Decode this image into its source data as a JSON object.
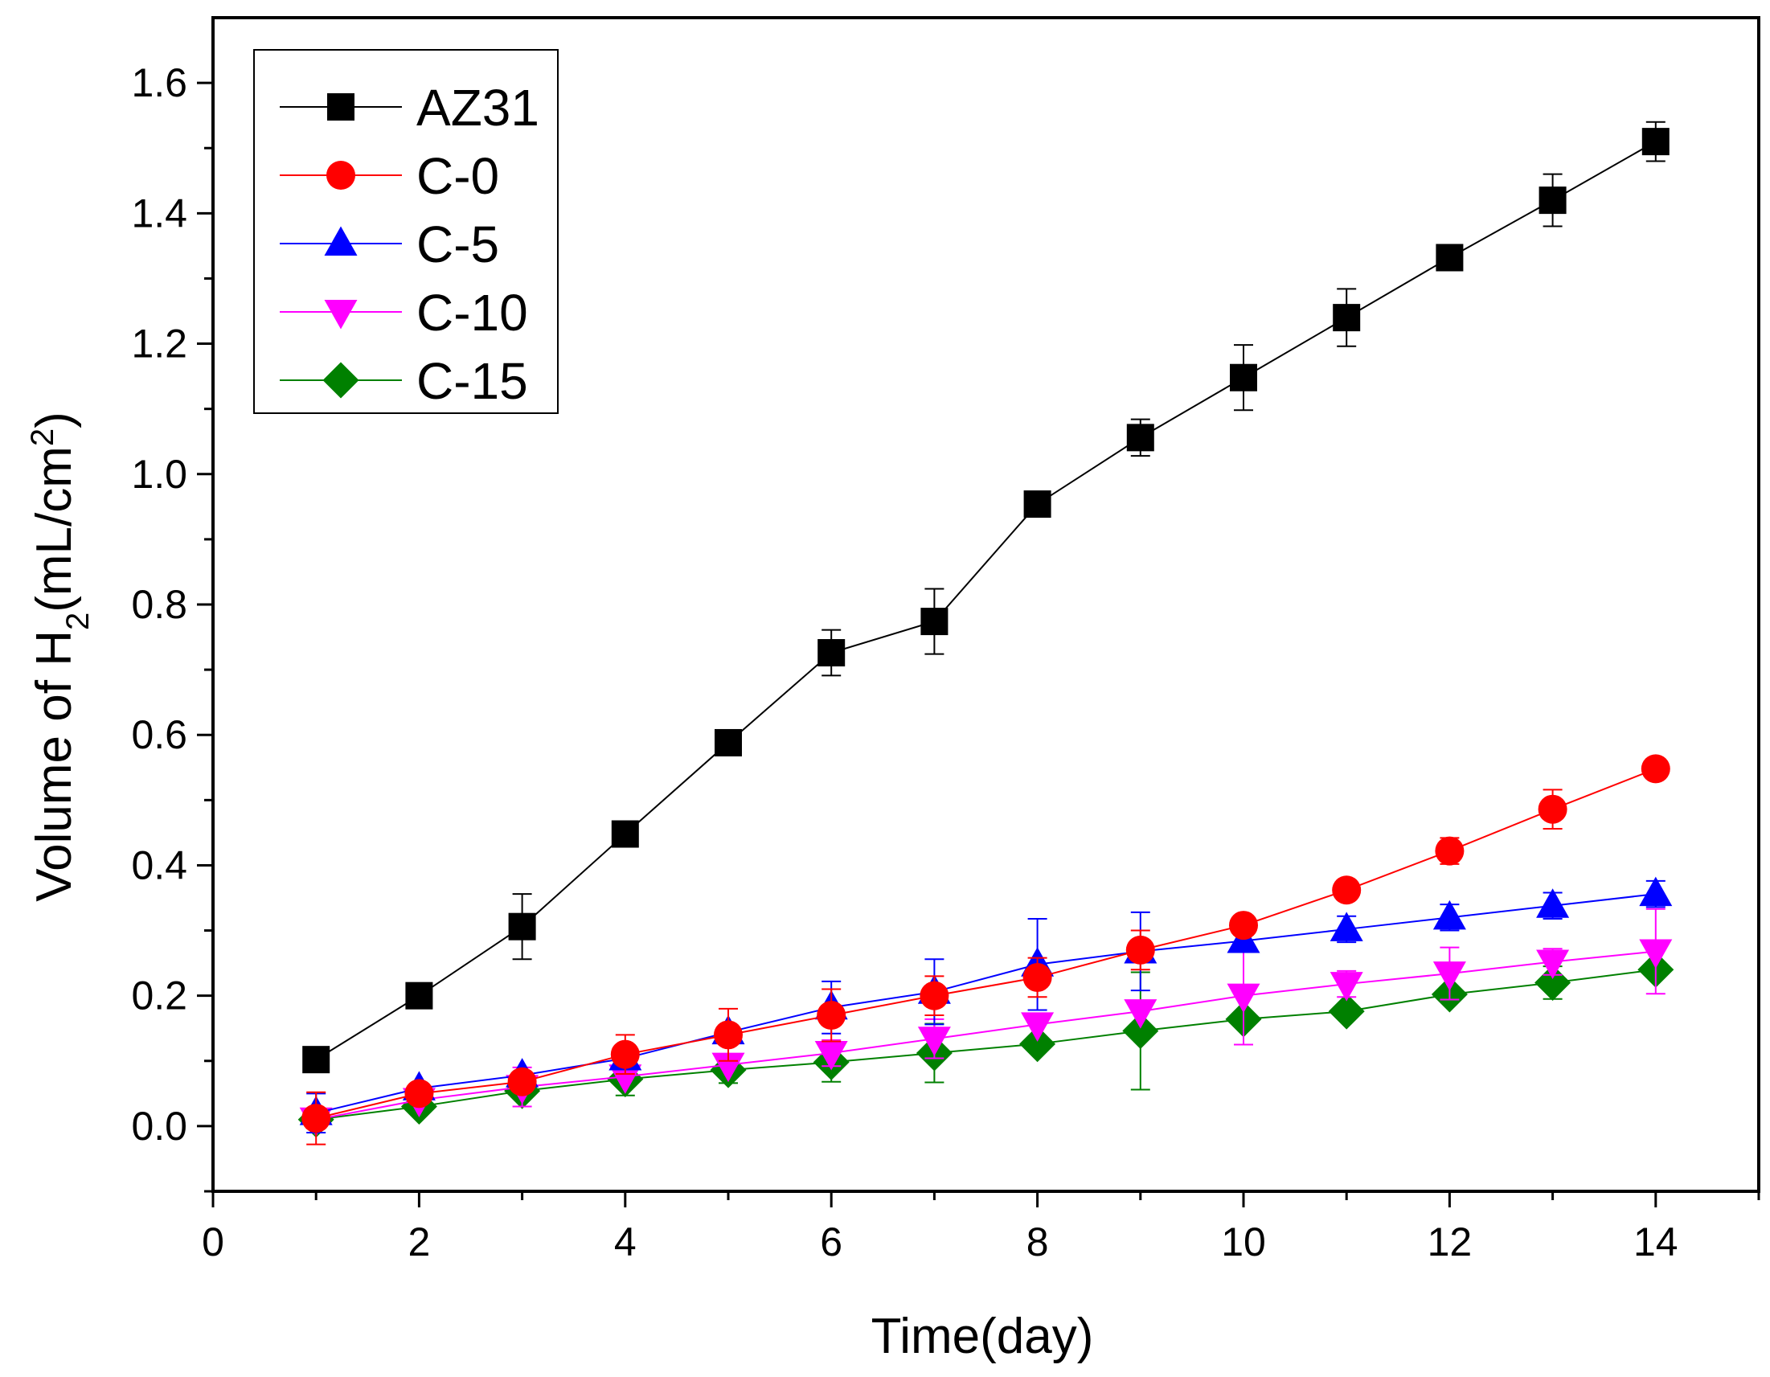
{
  "chart_data": {
    "type": "line",
    "title": "",
    "xlabel": "Time(day)",
    "ylabel": {
      "prefix": "Volume of H",
      "sub": "2",
      "middle": "(mL/cm",
      "sup": "2",
      "suffix": ")"
    },
    "xlim": [
      0,
      15
    ],
    "ylim": [
      -0.1,
      1.7
    ],
    "xticks": [
      0,
      2,
      4,
      6,
      8,
      10,
      12,
      14
    ],
    "xtick_labels": [
      "0",
      "2",
      "4",
      "6",
      "8",
      "10",
      "12",
      "14"
    ],
    "yticks": [
      0.0,
      0.2,
      0.4,
      0.6,
      0.8,
      1.0,
      1.2,
      1.4,
      1.6
    ],
    "ytick_labels": [
      "0.0",
      "0.2",
      "0.4",
      "0.6",
      "0.8",
      "1.0",
      "1.2",
      "1.4",
      "1.6"
    ],
    "legend_position": "top-left",
    "grid": false,
    "x": [
      1,
      2,
      3,
      4,
      5,
      6,
      7,
      8,
      9,
      10,
      11,
      12,
      13,
      14
    ],
    "series": [
      {
        "name": "AZ31",
        "color": "#000000",
        "marker": "square",
        "values": [
          0.102,
          0.2,
          0.306,
          0.448,
          0.588,
          0.726,
          0.774,
          0.954,
          1.056,
          1.148,
          1.24,
          1.332,
          1.42,
          1.51
        ],
        "errors": [
          0.0,
          0.0,
          0.05,
          0.0,
          0.0,
          0.035,
          0.05,
          0.0,
          0.028,
          0.05,
          0.044,
          0.0,
          0.04,
          0.03
        ]
      },
      {
        "name": "C-0",
        "color": "#ff0000",
        "marker": "circle",
        "values": [
          0.012,
          0.05,
          0.068,
          0.11,
          0.14,
          0.17,
          0.2,
          0.228,
          0.27,
          0.308,
          0.362,
          0.422,
          0.486,
          0.548
        ],
        "errors": [
          0.04,
          0.0,
          0.0,
          0.03,
          0.04,
          0.04,
          0.03,
          0.03,
          0.03,
          0.0,
          0.0,
          0.02,
          0.03,
          0.0
        ]
      },
      {
        "name": "C-5",
        "color": "#0000ff",
        "marker": "triangle-up",
        "values": [
          0.02,
          0.058,
          0.078,
          0.104,
          0.144,
          0.182,
          0.206,
          0.248,
          0.268,
          0.284,
          0.302,
          0.32,
          0.338,
          0.356
        ],
        "errors": [
          0.03,
          0.0,
          0.0,
          0.0,
          0.0,
          0.04,
          0.05,
          0.07,
          0.06,
          0.0,
          0.02,
          0.02,
          0.02,
          0.02
        ]
      },
      {
        "name": "C-10",
        "color": "#ff00ff",
        "marker": "triangle-down",
        "values": [
          0.01,
          0.04,
          0.06,
          0.076,
          0.094,
          0.112,
          0.134,
          0.156,
          0.176,
          0.2,
          0.218,
          0.234,
          0.252,
          0.268
        ],
        "errors": [
          0.0,
          0.0,
          0.03,
          0.0,
          0.0,
          0.02,
          0.03,
          0.0,
          0.0,
          0.075,
          0.02,
          0.04,
          0.02,
          0.065
        ]
      },
      {
        "name": "C-15",
        "color": "#008000",
        "marker": "diamond",
        "values": [
          0.01,
          0.03,
          0.054,
          0.072,
          0.086,
          0.098,
          0.112,
          0.126,
          0.146,
          0.164,
          0.176,
          0.202,
          0.22,
          0.24
        ],
        "errors": [
          0.0,
          0.0,
          0.0,
          0.025,
          0.02,
          0.03,
          0.045,
          0.0,
          0.09,
          0.0,
          0.0,
          0.0,
          0.025,
          0.0
        ]
      }
    ]
  }
}
